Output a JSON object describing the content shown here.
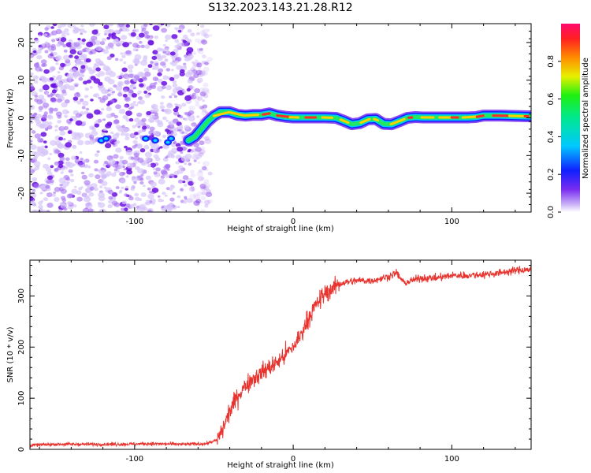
{
  "title": "S132.2023.143.21.28.R12",
  "chart_data": [
    {
      "type": "heatmap",
      "xlabel": "Height of straight line (km)",
      "ylabel": "Frequency (Hz)",
      "xlim": [
        -166,
        150
      ],
      "ylim": [
        -25,
        25
      ],
      "xticks": [
        "-100",
        "0",
        "100"
      ],
      "yticks": [
        "-20",
        "-10",
        "0",
        "10",
        "20"
      ],
      "noise_region_x": [
        -166,
        -58
      ],
      "ridge": {
        "x": [
          -66,
          -62,
          -58,
          -54,
          -50,
          -46,
          -40,
          -35,
          -30,
          -25,
          -20,
          -15,
          -10,
          -5,
          0,
          10,
          20,
          27,
          32,
          37,
          42,
          47,
          52,
          57,
          62,
          67,
          72,
          77,
          82,
          90,
          100,
          110,
          115,
          120,
          130,
          140,
          150
        ],
        "y": [
          -6,
          -5,
          -3,
          -1,
          0.5,
          1.5,
          1.5,
          0.8,
          0.6,
          0.8,
          0.8,
          1.2,
          0.6,
          0.3,
          0.1,
          0.1,
          0.1,
          0,
          -0.8,
          -1.7,
          -1.4,
          -0.4,
          -0.3,
          -1.6,
          -1.7,
          -0.9,
          0,
          0.2,
          0.1,
          0.1,
          0.1,
          0.1,
          0.2,
          0.6,
          0.6,
          0.5,
          0.4
        ]
      },
      "colorbar": {
        "label": "Normalized spectral amplitude",
        "ticks": [
          "0.0",
          "0.2",
          "0.4",
          "0.6",
          "0.8"
        ],
        "range": [
          0,
          1
        ]
      }
    },
    {
      "type": "line",
      "xlabel": "Height of straight line (km)",
      "ylabel": "SNR (10 * v/v)",
      "xlim": [
        -166,
        150
      ],
      "ylim": [
        0,
        370
      ],
      "xticks": [
        "-100",
        "0",
        "100"
      ],
      "yticks": [
        "0",
        "100",
        "200",
        "300"
      ],
      "series": [
        {
          "color": "#e8332e",
          "x": [
            -166,
            -150,
            -130,
            -110,
            -90,
            -70,
            -55,
            -48,
            -45,
            -40,
            -35,
            -30,
            -25,
            -20,
            -15,
            -10,
            -5,
            0,
            5,
            10,
            15,
            20,
            25,
            30,
            40,
            50,
            60,
            65,
            70,
            80,
            90,
            100,
            110,
            120,
            130,
            140,
            150
          ],
          "y": [
            8,
            10,
            10,
            10,
            11,
            10,
            11,
            18,
            35,
            75,
            105,
            125,
            140,
            150,
            160,
            170,
            185,
            200,
            225,
            260,
            285,
            305,
            315,
            325,
            330,
            330,
            338,
            345,
            325,
            335,
            335,
            340,
            340,
            342,
            345,
            350,
            352
          ]
        }
      ]
    }
  ],
  "colors": {
    "line": "#e8332e",
    "noise_strong": "#6a0fe0",
    "noise_mid": "#a56df2",
    "noise_light": "#d6c4fa"
  }
}
